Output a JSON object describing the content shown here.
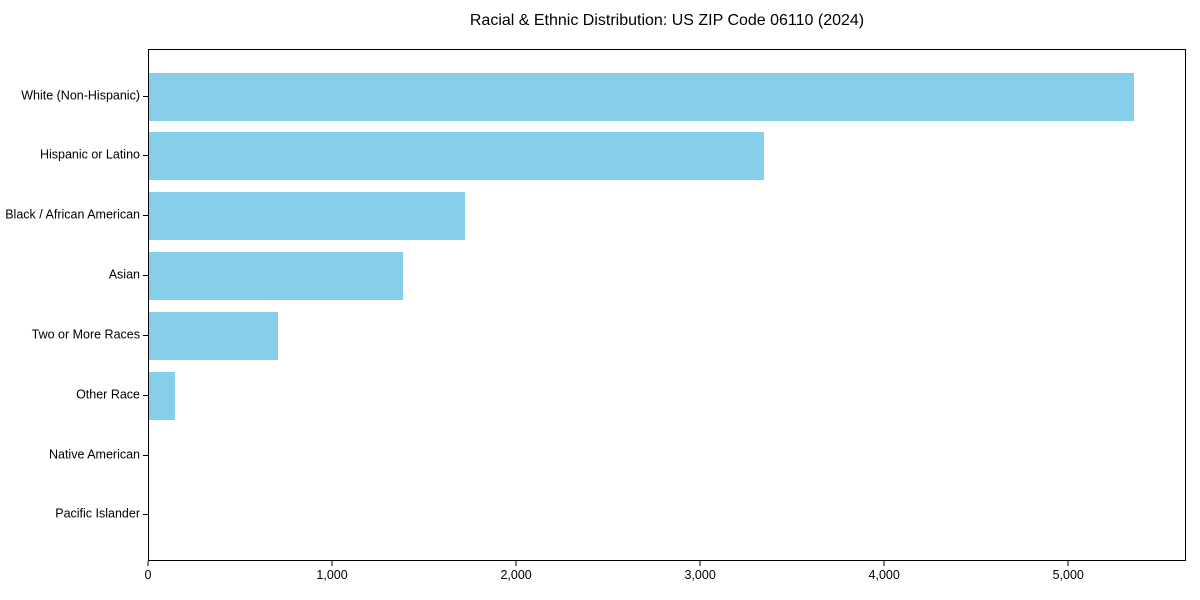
{
  "title": "Racial & Ethnic Distribution: US ZIP Code 06110 (2024)",
  "colors": {
    "bar": "#87CEEB",
    "axis": "#000000",
    "text": "#000000",
    "background": "#FFFFFF"
  },
  "chart_data": {
    "type": "bar",
    "orientation": "horizontal",
    "title": "Racial & Ethnic Distribution: US ZIP Code 06110 (2024)",
    "categories": [
      "White (Non-Hispanic)",
      "Hispanic or Latino",
      "Black / African American",
      "Asian",
      "Two or More Races",
      "Other Race",
      "Native American",
      "Pacific Islander"
    ],
    "values": [
      5360,
      3350,
      1720,
      1385,
      700,
      140,
      0,
      0
    ],
    "xlabel": "",
    "ylabel": "",
    "xlim": [
      0,
      5640
    ],
    "x_ticks": [
      0,
      1000,
      2000,
      3000,
      4000,
      5000
    ],
    "x_tick_labels": [
      "0",
      "1,000",
      "2,000",
      "3,000",
      "4,000",
      "5,000"
    ],
    "bar_color": "#87CEEB",
    "grid": false,
    "legend": null
  }
}
